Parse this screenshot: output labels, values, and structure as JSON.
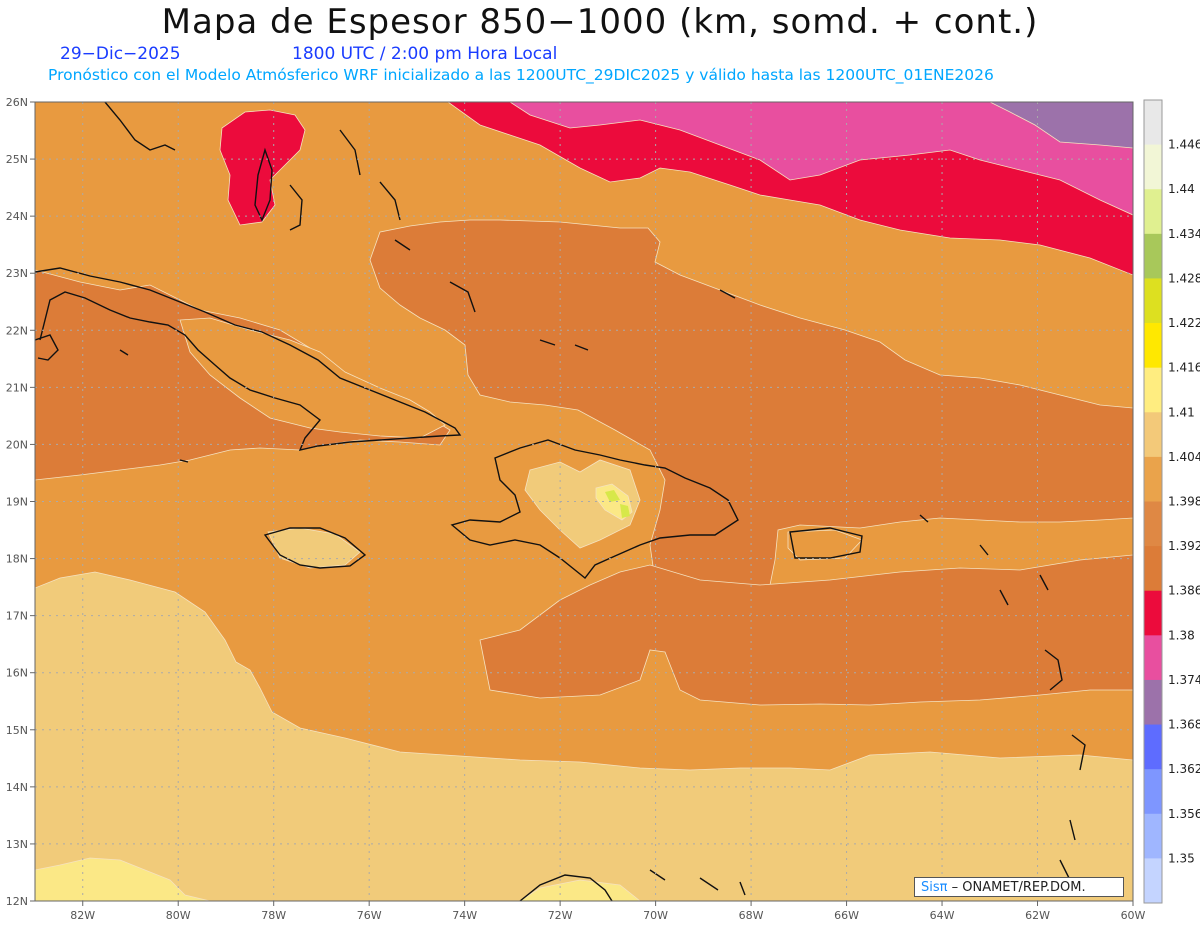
{
  "header": {
    "title": "Mapa de Espesor 850−1000 (km, somd. + cont.)",
    "date": "29−Dic−2025",
    "time": "1800 UTC / 2:00 pm Hora Local",
    "subtitle": "Pronóstico con el Modelo Atmósferico WRF inicializado a las 1200UTC_29DIC2025 y válido hasta las  1200UTC_01ENE2026"
  },
  "map": {
    "lon_range": [
      -83,
      -60
    ],
    "lat_range": [
      12,
      26
    ],
    "x_ticks": [
      "82W",
      "80W",
      "78W",
      "76W",
      "74W",
      "72W",
      "70W",
      "68W",
      "66W",
      "64W",
      "62W",
      "60W"
    ],
    "y_ticks": [
      "26N",
      "25N",
      "24N",
      "23N",
      "22N",
      "21N",
      "20N",
      "19N",
      "18N",
      "17N",
      "16N",
      "15N",
      "14N",
      "13N",
      "12N"
    ],
    "colors": {
      "band_1392": "#dc7c38",
      "band_1398": "#e89a40",
      "band_1404": "#f1cb7a",
      "band_1410": "#fbe886",
      "band_1416": "#fff07a",
      "band_1386": "#ec0b3c",
      "band_1380": "#e84f9f",
      "band_1374": "#a26fa6"
    }
  },
  "colorbar": {
    "labels": [
      "1.446",
      "1.44",
      "1.434",
      "1.428",
      "1.422",
      "1.416",
      "1.41",
      "1.404",
      "1.398",
      "1.392",
      "1.386",
      "1.38",
      "1.374",
      "1.368",
      "1.362",
      "1.356",
      "1.35"
    ],
    "colors": [
      "#e8e8e8",
      "#f2f6d6",
      "#e0f090",
      "#a8c85a",
      "#dde020",
      "#ffe800",
      "#ffed80",
      "#f3c979",
      "#eaa34b",
      "#df8844",
      "#dc7c38",
      "#ec0b3c",
      "#e84f9f",
      "#9c72aa",
      "#5e6cff",
      "#7e96ff",
      "#9fb6ff",
      "#c4d4ff"
    ]
  },
  "credit": {
    "logo": "Sisπ",
    "text": "– ONAMET/REP.DOM."
  }
}
